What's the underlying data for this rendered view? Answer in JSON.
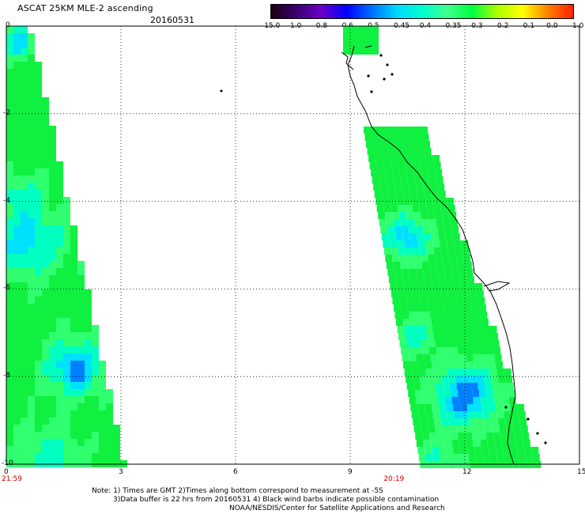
{
  "header": {
    "title": "ASCAT 25KM MLE-2 ascending",
    "date": "20160531"
  },
  "colorbar": {
    "labels": [
      "-15.0",
      "-1.0",
      "-0.8",
      "-0.6",
      "-0.5",
      "-0.45",
      "-0.4",
      "-0.35",
      "-0.3",
      "-0.2",
      "-0.1",
      "0.0",
      "1.0"
    ],
    "colors": [
      "#1a0010",
      "#3a0070",
      "#6a00c8",
      "#0000ff",
      "#0070ff",
      "#00d8ff",
      "#00ffd0",
      "#40ff90",
      "#00ff40",
      "#b0ff00",
      "#ffff00",
      "#ff8000",
      "#ff2000"
    ]
  },
  "chart_data": {
    "type": "heatmap",
    "x_ticks": [
      "0",
      "3",
      "6",
      "9",
      "12",
      "15"
    ],
    "y_ticks": [
      "0",
      "-2",
      "-4",
      "-6",
      "-8",
      "-10"
    ],
    "xlim": [
      0,
      15
    ],
    "ylim": [
      -10,
      0
    ],
    "grid": true,
    "time_labels": [
      {
        "x": 0,
        "text": "21:59"
      },
      {
        "x": 10,
        "text": "20:19"
      }
    ]
  },
  "notes": [
    "Note: 1) Times are GMT 2)Times along bottom correspond to measurement at -5S",
    "3)Data buffer is 22 hrs from 20160531 4) Black wind barbs indicate possible contamination",
    "NOAA/NESDIS/Center for Satellite Applications and Research"
  ]
}
